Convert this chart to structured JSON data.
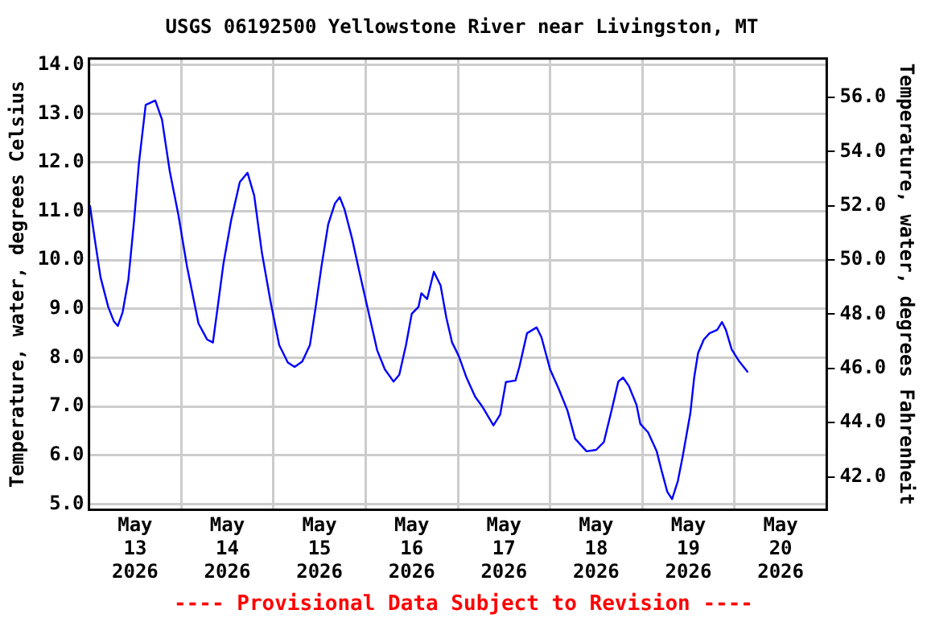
{
  "chart_data": {
    "type": "line",
    "title": "USGS 06192500 Yellowstone River near Livingston, MT",
    "ylabel": "Temperature, water, degrees Celsius",
    "y2label": "Temperature, water, degrees Fahrenheit",
    "x": [
      "2026-05-13T00:15",
      "2026-05-13T01:30",
      "2026-05-13T03:00",
      "2026-05-13T05:00",
      "2026-05-13T06:30",
      "2026-05-13T07:30",
      "2026-05-13T08:45",
      "2026-05-13T10:15",
      "2026-05-13T11:45",
      "2026-05-13T13:00",
      "2026-05-13T14:45",
      "2026-05-13T17:15",
      "2026-05-13T19:00",
      "2026-05-13T21:00",
      "2026-05-13T23:15",
      "2026-05-14T01:30",
      "2026-05-14T04:30",
      "2026-05-14T06:45",
      "2026-05-14T08:15",
      "2026-05-14T09:30",
      "2026-05-14T11:00",
      "2026-05-14T13:00",
      "2026-05-14T15:15",
      "2026-05-14T17:15",
      "2026-05-14T19:00",
      "2026-05-14T21:00",
      "2026-05-14T23:15",
      "2026-05-15T01:30",
      "2026-05-15T03:45",
      "2026-05-15T05:30",
      "2026-05-15T07:30",
      "2026-05-15T09:30",
      "2026-05-15T11:00",
      "2026-05-15T12:30",
      "2026-05-15T14:15",
      "2026-05-15T16:00",
      "2026-05-15T17:15",
      "2026-05-15T18:30",
      "2026-05-15T20:30",
      "2026-05-15T22:30",
      "2026-05-16T00:45",
      "2026-05-16T03:00",
      "2026-05-16T05:00",
      "2026-05-16T07:15",
      "2026-05-16T08:45",
      "2026-05-16T10:30",
      "2026-05-16T12:00",
      "2026-05-16T13:45",
      "2026-05-16T14:30",
      "2026-05-16T16:00",
      "2026-05-16T17:45",
      "2026-05-16T19:30",
      "2026-05-16T21:00",
      "2026-05-16T22:30",
      "2026-05-17T00:15",
      "2026-05-17T02:15",
      "2026-05-17T04:30",
      "2026-05-17T06:30",
      "2026-05-17T09:15",
      "2026-05-17T11:00",
      "2026-05-17T12:30",
      "2026-05-17T15:00",
      "2026-05-17T16:00",
      "2026-05-17T18:00",
      "2026-05-17T20:30",
      "2026-05-17T21:45",
      "2026-05-18T00:00",
      "2026-05-18T02:15",
      "2026-05-18T04:30",
      "2026-05-18T06:30",
      "2026-05-18T09:30",
      "2026-05-18T12:00",
      "2026-05-18T14:00",
      "2026-05-18T16:00",
      "2026-05-18T17:45",
      "2026-05-18T19:00",
      "2026-05-18T20:30",
      "2026-05-18T22:30",
      "2026-05-18T23:30",
      "2026-05-19T01:30",
      "2026-05-19T03:45",
      "2026-05-19T05:00",
      "2026-05-19T06:30",
      "2026-05-19T07:45",
      "2026-05-19T09:15",
      "2026-05-19T10:30",
      "2026-05-19T12:30",
      "2026-05-19T13:30",
      "2026-05-19T14:30",
      "2026-05-19T16:00",
      "2026-05-19T17:30",
      "2026-05-19T19:30",
      "2026-05-19T20:45",
      "2026-05-19T21:45",
      "2026-05-19T23:15",
      "2026-05-20T01:15",
      "2026-05-20T03:30"
    ],
    "series": [
      {
        "color": "#0000ff",
        "values": [
          11.12,
          10.43,
          9.65,
          9.04,
          8.74,
          8.65,
          8.93,
          9.6,
          10.82,
          11.99,
          13.18,
          13.27,
          12.88,
          11.83,
          10.93,
          9.87,
          8.7,
          8.37,
          8.31,
          9.04,
          9.93,
          10.82,
          11.6,
          11.79,
          11.32,
          10.15,
          9.15,
          8.26,
          7.9,
          7.81,
          7.92,
          8.26,
          9.04,
          9.87,
          10.73,
          11.16,
          11.29,
          11.04,
          10.43,
          9.71,
          8.93,
          8.15,
          7.76,
          7.51,
          7.65,
          8.26,
          8.9,
          9.04,
          9.32,
          9.2,
          9.76,
          9.48,
          8.82,
          8.31,
          8.03,
          7.59,
          7.2,
          6.98,
          6.61,
          6.83,
          7.5,
          7.53,
          7.81,
          8.5,
          8.62,
          8.42,
          7.76,
          7.36,
          6.92,
          6.34,
          6.08,
          6.11,
          6.27,
          6.92,
          7.51,
          7.59,
          7.42,
          7.03,
          6.64,
          6.47,
          6.08,
          5.69,
          5.25,
          5.1,
          5.47,
          5.97,
          6.86,
          7.59,
          8.09,
          8.37,
          8.5,
          8.57,
          8.73,
          8.57,
          8.17,
          7.92,
          7.7
        ]
      }
    ],
    "xlim": [
      "2026-05-13T00:00",
      "2026-05-21T00:00"
    ],
    "xticks": [
      {
        "value": "2026-05-13T12:00",
        "label": "May\n13\n2026"
      },
      {
        "value": "2026-05-14T00:00",
        "label": null
      },
      {
        "value": "2026-05-14T12:00",
        "label": "May\n14\n2026"
      },
      {
        "value": "2026-05-15T00:00",
        "label": null
      },
      {
        "value": "2026-05-15T12:00",
        "label": "May\n15\n2026"
      },
      {
        "value": "2026-05-16T00:00",
        "label": null
      },
      {
        "value": "2026-05-16T12:00",
        "label": "May\n16\n2026"
      },
      {
        "value": "2026-05-17T00:00",
        "label": null
      },
      {
        "value": "2026-05-17T12:00",
        "label": "May\n17\n2026"
      },
      {
        "value": "2026-05-18T00:00",
        "label": null
      },
      {
        "value": "2026-05-18T12:00",
        "label": "May\n18\n2026"
      },
      {
        "value": "2026-05-19T00:00",
        "label": null
      },
      {
        "value": "2026-05-19T12:00",
        "label": "May\n19\n2026"
      },
      {
        "value": "2026-05-20T00:00",
        "label": null
      },
      {
        "value": "2026-05-20T12:00",
        "label": "May\n20\n2026"
      }
    ],
    "ylim": [
      4.88,
      14.13
    ],
    "yticks": [
      {
        "value": 5,
        "label": "5.0"
      },
      {
        "value": 6,
        "label": "6.0"
      },
      {
        "value": 7,
        "label": "7.0"
      },
      {
        "value": 8,
        "label": "8.0"
      },
      {
        "value": 9,
        "label": "9.0"
      },
      {
        "value": 10,
        "label": "10.0"
      },
      {
        "value": 11,
        "label": "11.0"
      },
      {
        "value": 12,
        "label": "12.0"
      },
      {
        "value": 13,
        "label": "13.0"
      },
      {
        "value": 14,
        "label": "14.0"
      }
    ],
    "y2lim": [
      40.78,
      57.43
    ],
    "y2ticks": [
      {
        "value": 42,
        "label": "42.0"
      },
      {
        "value": 44,
        "label": "44.0"
      },
      {
        "value": 46,
        "label": "46.0"
      },
      {
        "value": 48,
        "label": "48.0"
      },
      {
        "value": 50,
        "label": "50.0"
      },
      {
        "value": 52,
        "label": "52.0"
      },
      {
        "value": 54,
        "label": "54.0"
      },
      {
        "value": 56,
        "label": "56.0"
      }
    ],
    "grid": true,
    "legend": false,
    "marker": "none",
    "line_style": "solid",
    "annotations": [
      "---- Provisional Data Subject to Revision ----"
    ]
  }
}
